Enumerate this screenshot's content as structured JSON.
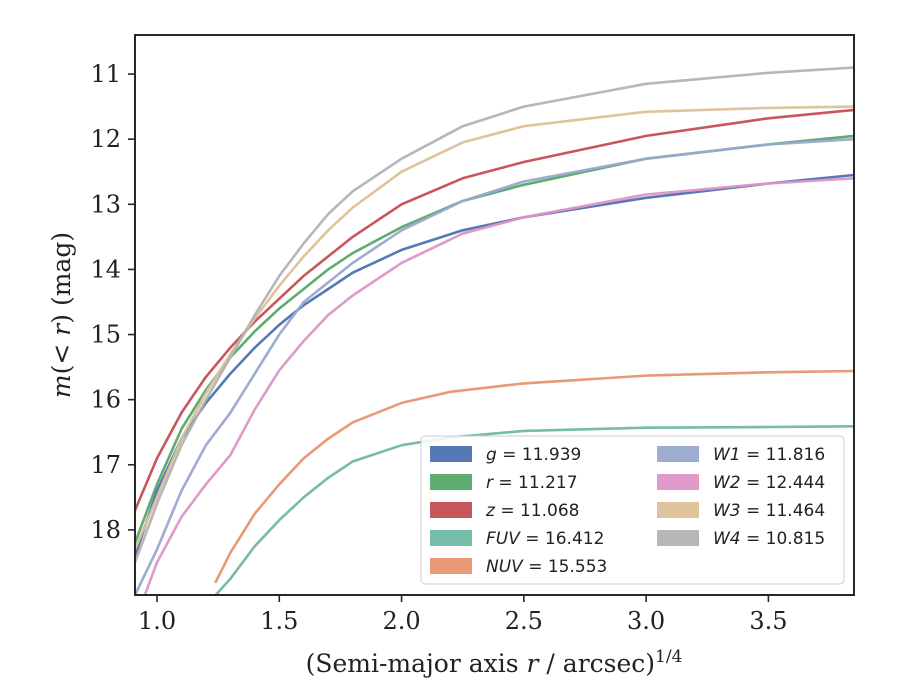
{
  "chart_data": {
    "type": "line",
    "xlabel": "(Semi-major axis r / arcsec)^1/4",
    "ylabel": "m(< r) (mag)",
    "xlim": [
      0.91,
      3.85
    ],
    "ylim": [
      19.0,
      10.4
    ],
    "y_inverted": true,
    "x_ticks": [
      1.0,
      1.5,
      2.0,
      2.5,
      3.0,
      3.5
    ],
    "x_tick_labels": [
      "1.0",
      "1.5",
      "2.0",
      "2.5",
      "3.0",
      "3.5"
    ],
    "y_ticks": [
      11,
      12,
      13,
      14,
      15,
      16,
      17,
      18
    ],
    "y_tick_labels": [
      "11",
      "12",
      "13",
      "14",
      "15",
      "16",
      "17",
      "18"
    ],
    "grid": false,
    "legend_position": "lower-right",
    "legend_columns": 2,
    "series": [
      {
        "name": "g",
        "total": "11.939",
        "color": "#4c72b0",
        "x": [
          0.91,
          1.0,
          1.1,
          1.2,
          1.3,
          1.4,
          1.5,
          1.6,
          1.7,
          1.8,
          2.0,
          2.25,
          2.5,
          3.0,
          3.5,
          3.85
        ],
        "y": [
          18.4,
          17.4,
          16.6,
          16.05,
          15.6,
          15.2,
          14.85,
          14.55,
          14.3,
          14.05,
          13.7,
          13.4,
          13.2,
          12.9,
          12.68,
          12.55
        ]
      },
      {
        "name": "r",
        "total": "11.217",
        "color": "#55a868",
        "x": [
          0.91,
          1.0,
          1.1,
          1.2,
          1.3,
          1.4,
          1.5,
          1.6,
          1.7,
          1.8,
          2.0,
          2.25,
          2.5,
          3.0,
          3.5,
          3.85
        ],
        "y": [
          18.2,
          17.3,
          16.45,
          15.85,
          15.35,
          14.95,
          14.6,
          14.3,
          14.0,
          13.75,
          13.35,
          12.95,
          12.7,
          12.3,
          12.08,
          11.95
        ]
      },
      {
        "name": "z",
        "total": "11.068",
        "color": "#c44e52",
        "x": [
          0.91,
          1.0,
          1.1,
          1.2,
          1.3,
          1.4,
          1.5,
          1.6,
          1.7,
          1.8,
          2.0,
          2.25,
          2.5,
          3.0,
          3.5,
          3.85
        ],
        "y": [
          17.7,
          16.9,
          16.2,
          15.65,
          15.2,
          14.8,
          14.45,
          14.1,
          13.8,
          13.5,
          13.0,
          12.6,
          12.35,
          11.95,
          11.68,
          11.55
        ]
      },
      {
        "name": "FUV",
        "total": "16.412",
        "color": "#6fb8a3",
        "x": [
          1.24,
          1.3,
          1.4,
          1.5,
          1.6,
          1.7,
          1.8,
          2.0,
          2.2,
          2.5,
          3.0,
          3.5,
          3.85
        ],
        "y": [
          19.0,
          18.75,
          18.25,
          17.85,
          17.5,
          17.2,
          16.95,
          16.7,
          16.58,
          16.48,
          16.43,
          16.42,
          16.41
        ]
      },
      {
        "name": "NUV",
        "total": "15.553",
        "color": "#e8936f",
        "x": [
          1.24,
          1.3,
          1.4,
          1.5,
          1.6,
          1.7,
          1.8,
          2.0,
          2.2,
          2.5,
          3.0,
          3.5,
          3.85
        ],
        "y": [
          18.8,
          18.35,
          17.75,
          17.3,
          16.9,
          16.6,
          16.35,
          16.05,
          15.88,
          15.75,
          15.63,
          15.58,
          15.56
        ]
      },
      {
        "name": "W1",
        "total": "11.816",
        "color": "#9aa8cf",
        "x": [
          0.91,
          1.0,
          1.1,
          1.2,
          1.3,
          1.4,
          1.5,
          1.6,
          1.8,
          2.0,
          2.25,
          2.5,
          3.0,
          3.5,
          3.85
        ],
        "y": [
          19.0,
          18.3,
          17.4,
          16.7,
          16.2,
          15.6,
          15.0,
          14.5,
          13.9,
          13.4,
          12.95,
          12.65,
          12.3,
          12.08,
          12.0
        ]
      },
      {
        "name": "W2",
        "total": "12.444",
        "color": "#de93c6",
        "x": [
          0.95,
          1.0,
          1.1,
          1.2,
          1.3,
          1.4,
          1.5,
          1.6,
          1.7,
          1.8,
          2.0,
          2.25,
          2.5,
          3.0,
          3.5,
          3.85
        ],
        "y": [
          19.0,
          18.5,
          17.8,
          17.3,
          16.85,
          16.15,
          15.55,
          15.1,
          14.7,
          14.4,
          13.9,
          13.45,
          13.2,
          12.85,
          12.68,
          12.6
        ]
      },
      {
        "name": "W3",
        "total": "11.464",
        "color": "#ddc097",
        "x": [
          0.91,
          1.0,
          1.1,
          1.2,
          1.3,
          1.4,
          1.5,
          1.6,
          1.7,
          1.8,
          2.0,
          2.25,
          2.5,
          3.0,
          3.5,
          3.85
        ],
        "y": [
          18.3,
          17.5,
          16.6,
          15.9,
          15.3,
          14.75,
          14.25,
          13.8,
          13.4,
          13.05,
          12.5,
          12.05,
          11.8,
          11.58,
          11.52,
          11.5
        ]
      },
      {
        "name": "W4",
        "total": "10.815",
        "color": "#b3b3b3",
        "x": [
          0.91,
          1.0,
          1.1,
          1.2,
          1.3,
          1.4,
          1.5,
          1.6,
          1.7,
          1.8,
          2.0,
          2.25,
          2.5,
          3.0,
          3.5,
          3.85
        ],
        "y": [
          18.5,
          17.6,
          16.7,
          16.0,
          15.35,
          14.7,
          14.1,
          13.6,
          13.15,
          12.8,
          12.3,
          11.8,
          11.5,
          11.15,
          10.98,
          10.9
        ]
      }
    ]
  }
}
